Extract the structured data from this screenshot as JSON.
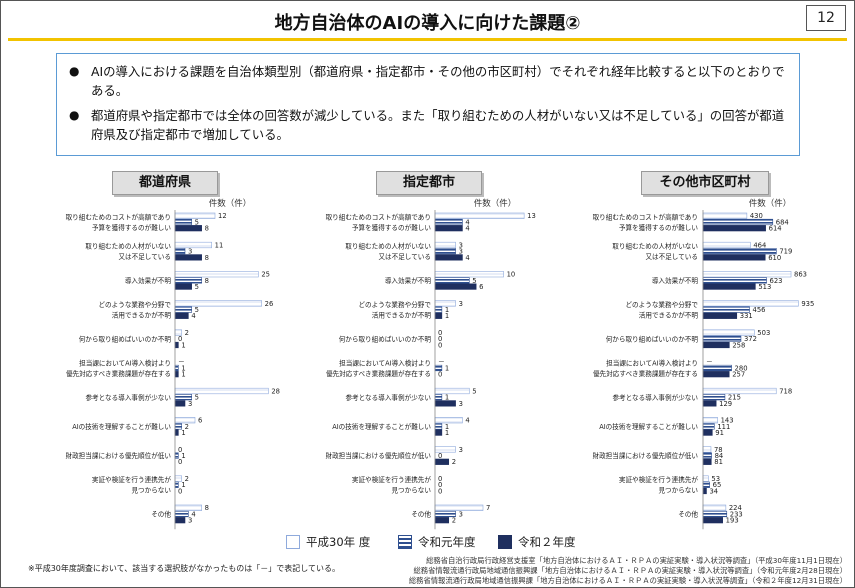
{
  "header": {
    "title": "地方自治体のAIの導入に向けた課題②",
    "page_number": "12"
  },
  "summary": {
    "bullets": [
      "AIの導入における課題を自治体類型別（都道府県・指定都市・その他の市区町村）でそれぞれ経年比較すると以下のとおりである。",
      "都道府県や指定都市では全体の回答数が減少している。また「取り組むための人材がいない又は不足している」の回答が都道府県及び指定都市で増加している。"
    ]
  },
  "colors": {
    "h30_fill": "#ffffff",
    "h30_stroke": "#8faadc",
    "r1": "#2f4f8f",
    "r2": "#1f2f5f",
    "accent": "#f2c300"
  },
  "chart_data": [
    {
      "type": "bar",
      "title": "都道府県",
      "unit_label": "件数（件）",
      "categories": [
        [
          "取り組むためのコストが高額であり",
          "予算を獲得するのが難しい"
        ],
        [
          "取り組むための人材がいない",
          "又は不足している"
        ],
        [
          "導入効果が不明"
        ],
        [
          "どのような業務や分野で",
          "活用できるかが不明"
        ],
        [
          "何から取り組めばいいのか不明"
        ],
        [
          "担当課においてAI導入検討より",
          "優先対応すべき業務課題が存在する"
        ],
        [
          "参考となる導入事例が少ない"
        ],
        [
          "AIの技術を理解することが難しい"
        ],
        [
          "財政担当課における優先順位が低い"
        ],
        [
          "実証や検証を行う連携先が",
          "見つからない"
        ],
        [
          "その他"
        ]
      ],
      "series": [
        {
          "name": "平成30年度",
          "values": [
            12,
            11,
            25,
            26,
            2,
            null,
            28,
            6,
            0,
            2,
            8
          ]
        },
        {
          "name": "令和元年度",
          "values": [
            5,
            3,
            8,
            5,
            0,
            1,
            5,
            2,
            1,
            1,
            4
          ]
        },
        {
          "name": "令和２年度",
          "values": [
            8,
            8,
            5,
            4,
            1,
            1,
            3,
            1,
            0,
            0,
            3
          ]
        }
      ],
      "xlim": [
        0,
        30
      ]
    },
    {
      "type": "bar",
      "title": "指定都市",
      "unit_label": "件数（件）",
      "categories": [
        [
          "取り組むためのコストが高額であり",
          "予算を獲得するのが難しい"
        ],
        [
          "取り組むための人材がいない",
          "又は不足している"
        ],
        [
          "導入効果が不明"
        ],
        [
          "どのような業務や分野で",
          "活用できるかが不明"
        ],
        [
          "何から取り組めばいいのか不明"
        ],
        [
          "担当課においてAI導入検討より",
          "優先対応すべき業務課題が存在する"
        ],
        [
          "参考となる導入事例が少ない"
        ],
        [
          "AIの技術を理解することが難しい"
        ],
        [
          "財政担当課における優先順位が低い"
        ],
        [
          "実証や検証を行う連携先が",
          "見つからない"
        ],
        [
          "その他"
        ]
      ],
      "series": [
        {
          "name": "平成30年度",
          "values": [
            13,
            3,
            10,
            3,
            0,
            null,
            5,
            4,
            3,
            0,
            7
          ]
        },
        {
          "name": "令和元年度",
          "values": [
            4,
            3,
            5,
            1,
            0,
            1,
            1,
            1,
            0,
            0,
            3
          ]
        },
        {
          "name": "令和２年度",
          "values": [
            4,
            4,
            6,
            1,
            0,
            0,
            3,
            1,
            2,
            0,
            2
          ]
        }
      ],
      "xlim": [
        0,
        14
      ]
    },
    {
      "type": "bar",
      "title": "その他市区町村",
      "unit_label": "件数（件）",
      "categories": [
        [
          "取り組むためのコストが高額であり",
          "予算を獲得するのが難しい"
        ],
        [
          "取り組むための人材がいない",
          "又は不足している"
        ],
        [
          "導入効果が不明"
        ],
        [
          "どのような業務や分野で",
          "活用できるかが不明"
        ],
        [
          "何から取り組めばいいのか不明"
        ],
        [
          "担当課においてAI導入検討より",
          "優先対応すべき業務課題が存在する"
        ],
        [
          "参考となる導入事例が少ない"
        ],
        [
          "AIの技術を理解することが難しい"
        ],
        [
          "財政担当課における優先順位が低い"
        ],
        [
          "実証や検証を行う連携先が",
          "見つからない"
        ],
        [
          "その他"
        ]
      ],
      "series": [
        {
          "name": "平成30年度",
          "values": [
            430,
            464,
            863,
            935,
            503,
            null,
            718,
            143,
            78,
            53,
            224
          ]
        },
        {
          "name": "令和元年度",
          "values": [
            684,
            719,
            623,
            456,
            372,
            280,
            215,
            111,
            84,
            65,
            233
          ]
        },
        {
          "name": "令和２年度",
          "values": [
            614,
            610,
            513,
            331,
            258,
            257,
            129,
            91,
            81,
            34,
            193
          ]
        }
      ],
      "xlim": [
        0,
        1000
      ]
    }
  ],
  "legend": {
    "items": [
      "平成30年 度",
      "令和元年度",
      "令和２年度"
    ]
  },
  "footnote": "※平成30年度調査において、該当する選択肢がなかったものは「－」で表記している。",
  "sources": [
    "総務省自治行政局行政経営支援室「地方自治体におけるＡＩ・ＲＰＡの実証実験・導入状況等調査」（平成30年度11月1日現在）",
    "総務省情報流通行政局地域通信振興課「地方自治体におけるＡＩ・ＲＰＡの実証実験・導入状況等調査」（令和元年度2月28日現在）",
    "総務省情報流通行政局地域通信振興課「地方自治体におけるＡＩ・ＲＰＡの実証実験・導入状況等調査」（令和２年度12月31日現在）"
  ]
}
